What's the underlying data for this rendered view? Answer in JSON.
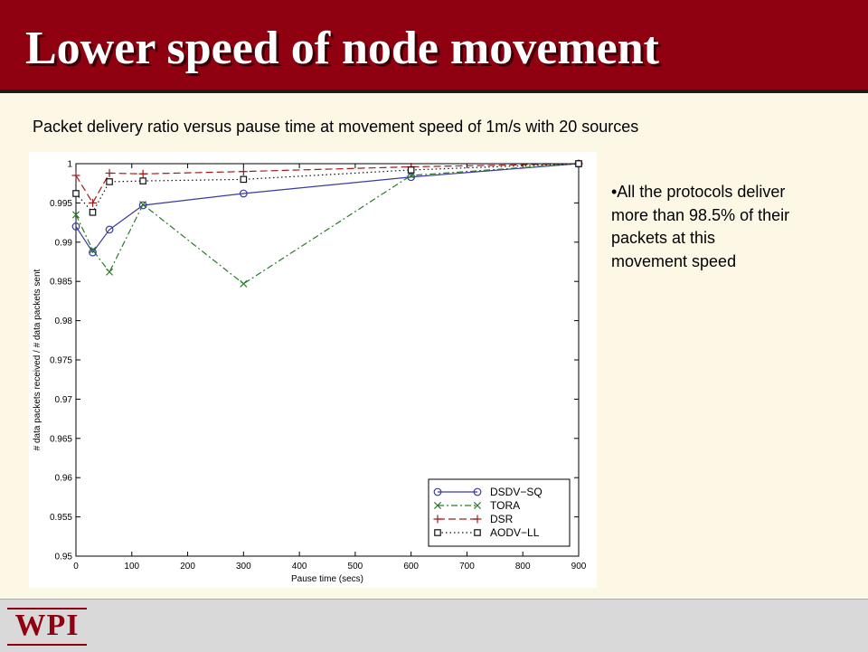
{
  "slide": {
    "title": "Lower speed of node movement",
    "caption": "Packet delivery ratio versus pause time at movement speed of 1m/s with 20 sources",
    "bullet": "•All the protocols deliver more than 98.5% of their packets at this movement speed",
    "logo": "WPI",
    "colors": {
      "header": "#8f0010",
      "background": "#fdf8e6",
      "footer": "#d9d9d9"
    }
  },
  "chart_data": {
    "type": "line",
    "xlabel": "Pause time (secs)",
    "ylabel": "# data packets received / # data packets sent",
    "xlim": [
      0,
      900
    ],
    "ylim": [
      0.95,
      1
    ],
    "xticks": [
      0,
      100,
      200,
      300,
      400,
      500,
      600,
      700,
      800,
      900
    ],
    "yticks": [
      0.95,
      0.955,
      0.96,
      0.965,
      0.97,
      0.975,
      0.98,
      0.985,
      0.99,
      0.995,
      1
    ],
    "ytick_labels": [
      "0.95",
      "0.955",
      "0.96",
      "0.965",
      "0.97",
      "0.975",
      "0.98",
      "0.985",
      "0.99",
      "0.995",
      "1"
    ],
    "legend_position": "bottom-right",
    "grid": false,
    "x": [
      0,
      30,
      60,
      120,
      300,
      600,
      900
    ],
    "series": [
      {
        "name": "DSDV−SQ",
        "marker": "circle",
        "dash": "solid",
        "color": "#3a3aa0",
        "values": [
          0.992,
          0.9887,
          0.9916,
          0.9947,
          0.9962,
          0.9983,
          1.0
        ]
      },
      {
        "name": "TORA",
        "marker": "x",
        "dash": "dashdot",
        "color": "#2a7a2a",
        "values": [
          0.9935,
          0.989,
          0.9862,
          0.9948,
          0.9847,
          0.9985,
          1.0
        ]
      },
      {
        "name": "DSR",
        "marker": "plus",
        "dash": "dashed",
        "color": "#a01c1c",
        "values": [
          0.9985,
          0.995,
          0.9988,
          0.9987,
          0.999,
          0.9996,
          1.0
        ]
      },
      {
        "name": "AODV−LL",
        "marker": "square",
        "dash": "dotted",
        "color": "#111111",
        "values": [
          0.9962,
          0.9938,
          0.9977,
          0.9978,
          0.998,
          0.9992,
          1.0
        ]
      }
    ]
  }
}
